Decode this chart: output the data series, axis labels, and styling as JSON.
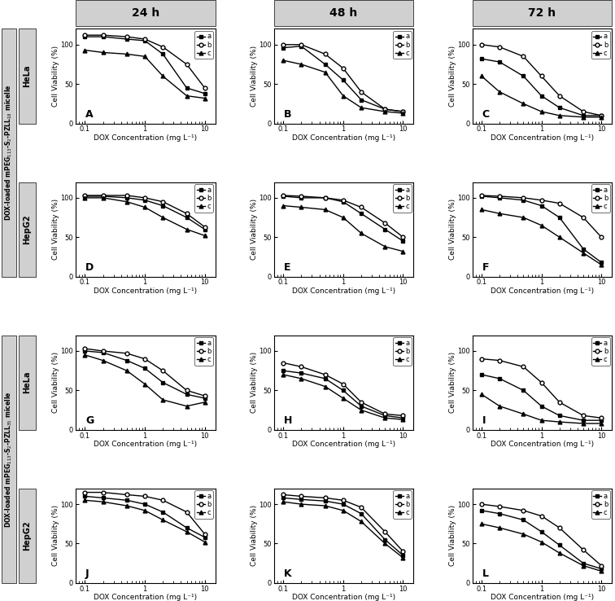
{
  "x": [
    0.1,
    0.2,
    0.5,
    1.0,
    2.0,
    5.0,
    10.0
  ],
  "col_titles": [
    "24 h",
    "48 h",
    "72 h"
  ],
  "xlabel": "DOX Concentration (mg L⁻¹)",
  "ylabel": "Cell Viability (%)",
  "ylim": [
    0,
    120
  ],
  "yticks": [
    0,
    50,
    100
  ],
  "header_gray": "#d0d0d0",
  "panels": {
    "A": {
      "a": [
        110,
        110,
        107,
        105,
        88,
        45,
        38
      ],
      "b": [
        112,
        112,
        110,
        107,
        97,
        75,
        45
      ],
      "c": [
        93,
        90,
        88,
        85,
        60,
        35,
        32
      ]
    },
    "B": {
      "a": [
        96,
        98,
        75,
        55,
        30,
        18,
        15
      ],
      "b": [
        100,
        100,
        88,
        70,
        40,
        18,
        15
      ],
      "c": [
        80,
        75,
        65,
        35,
        20,
        15,
        13
      ]
    },
    "C": {
      "a": [
        82,
        78,
        60,
        35,
        20,
        10,
        10
      ],
      "b": [
        100,
        97,
        85,
        60,
        35,
        15,
        10
      ],
      "c": [
        60,
        40,
        25,
        15,
        10,
        8,
        8
      ]
    },
    "D": {
      "a": [
        102,
        102,
        100,
        97,
        90,
        75,
        60
      ],
      "b": [
        103,
        103,
        103,
        100,
        95,
        80,
        63
      ],
      "c": [
        100,
        100,
        95,
        88,
        75,
        60,
        52
      ]
    },
    "E": {
      "a": [
        102,
        100,
        100,
        95,
        80,
        60,
        45
      ],
      "b": [
        103,
        102,
        100,
        97,
        88,
        68,
        50
      ],
      "c": [
        90,
        88,
        85,
        75,
        55,
        38,
        32
      ]
    },
    "F": {
      "a": [
        102,
        100,
        97,
        90,
        75,
        35,
        18
      ],
      "b": [
        103,
        102,
        100,
        97,
        93,
        75,
        50
      ],
      "c": [
        85,
        80,
        75,
        65,
        50,
        30,
        15
      ]
    },
    "G": {
      "a": [
        100,
        98,
        88,
        78,
        60,
        45,
        40
      ],
      "b": [
        103,
        100,
        97,
        90,
        75,
        50,
        43
      ],
      "c": [
        95,
        88,
        75,
        58,
        38,
        30,
        35
      ]
    },
    "H": {
      "a": [
        75,
        72,
        65,
        50,
        30,
        18,
        15
      ],
      "b": [
        85,
        80,
        70,
        58,
        35,
        20,
        18
      ],
      "c": [
        70,
        65,
        55,
        40,
        25,
        15,
        13
      ]
    },
    "I": {
      "a": [
        70,
        65,
        50,
        30,
        18,
        12,
        12
      ],
      "b": [
        90,
        88,
        80,
        60,
        35,
        18,
        15
      ],
      "c": [
        45,
        30,
        20,
        12,
        10,
        8,
        8
      ]
    },
    "J": {
      "a": [
        110,
        108,
        105,
        100,
        90,
        70,
        58
      ],
      "b": [
        115,
        115,
        112,
        110,
        105,
        90,
        62
      ],
      "c": [
        105,
        103,
        98,
        92,
        80,
        65,
        52
      ]
    },
    "K": {
      "a": [
        108,
        106,
        104,
        100,
        88,
        55,
        35
      ],
      "b": [
        112,
        110,
        108,
        105,
        96,
        65,
        40
      ],
      "c": [
        103,
        100,
        98,
        92,
        78,
        50,
        32
      ]
    },
    "L": {
      "a": [
        92,
        88,
        80,
        65,
        48,
        25,
        18
      ],
      "b": [
        100,
        97,
        92,
        85,
        70,
        42,
        22
      ],
      "c": [
        75,
        70,
        62,
        52,
        38,
        22,
        15
      ]
    }
  }
}
